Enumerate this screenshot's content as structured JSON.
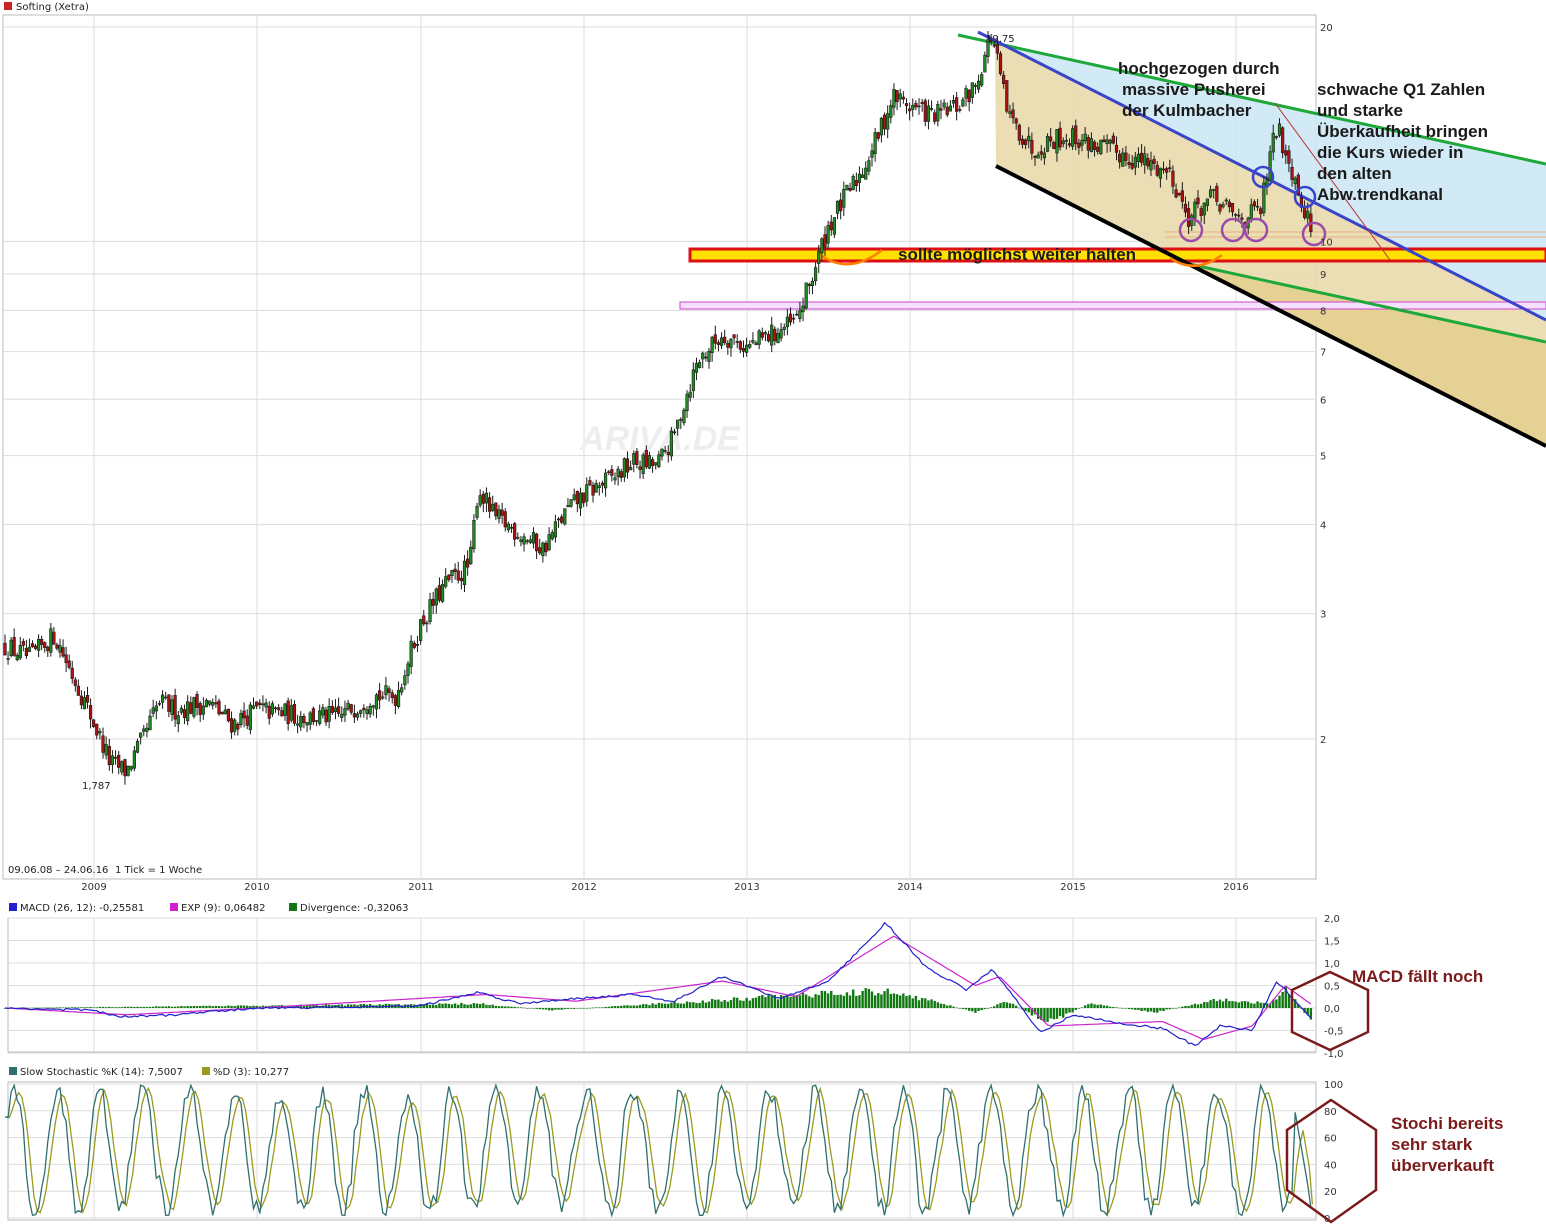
{
  "header": {
    "title": "Softing (Xetra)",
    "range": "09.06.08 – 24.06.16",
    "tick": "1 Tick = 1 Woche",
    "watermark": "ARIVA.DE",
    "high_label": "19,75",
    "low_label": "1,787"
  },
  "colors": {
    "candle": "#1a1a1a",
    "up": "#1f8c1f",
    "down": "#b01010",
    "grid": "#dddddd",
    "macd": "#2222cc",
    "signal": "#cc22cc",
    "divergence": "#117711",
    "stoch_k": "#2f6f6f",
    "stoch_d": "#9a9a20",
    "channel_fill": "#e8d8a8",
    "blue_fill": "#cce8f4",
    "annotation": "#7a1a1a",
    "circle": "#9a4aa8",
    "support": "#ffe000"
  },
  "legend": {
    "macd": "MACD (26, 12): -0,25581",
    "exp": "EXP (9): 0,06482",
    "divergence": "Divergence: -0,32063",
    "stoch_k": "Slow Stochastic %K (14): 7,5007",
    "stoch_d": "%D (3): 10,277"
  },
  "annotations": {
    "pusherei": [
      "hochgezogen durch",
      "massive  Pusherei",
      "der Kulmbacher"
    ],
    "q1": [
      "schwache Q1 Zahlen",
      "und starke",
      "Überkaufheit bringen",
      "die Kurs wieder in",
      "den alten",
      "Abw.trendkanal"
    ],
    "halten": "sollte möglichst weiter halten",
    "macd_note": "MACD fällt noch",
    "stochi": [
      "Stochi bereits",
      "sehr stark",
      "überverkauft"
    ]
  },
  "chart_data": [
    {
      "type": "candlestick",
      "title": "Softing (Xetra)",
      "x_ticks": [
        "2009",
        "2010",
        "2011",
        "2012",
        "2013",
        "2014",
        "2015",
        "2016"
      ],
      "y_ticks": [
        "20",
        "10",
        "9",
        "8",
        "7",
        "6",
        "5",
        "4",
        "3",
        "2"
      ],
      "y_scale": "log",
      "ylim": [
        1.4,
        20.5
      ],
      "weekly_close_anchors": [
        [
          2008.44,
          2.7
        ],
        [
          2008.6,
          2.6
        ],
        [
          2008.75,
          2.8
        ],
        [
          2008.85,
          2.5
        ],
        [
          2009.0,
          2.1
        ],
        [
          2009.1,
          1.85
        ],
        [
          2009.2,
          1.8
        ],
        [
          2009.3,
          2.0
        ],
        [
          2009.4,
          2.25
        ],
        [
          2009.5,
          2.2
        ],
        [
          2009.7,
          2.25
        ],
        [
          2009.85,
          2.1
        ],
        [
          2010.0,
          2.2
        ],
        [
          2010.3,
          2.15
        ],
        [
          2010.5,
          2.15
        ],
        [
          2010.7,
          2.3
        ],
        [
          2010.85,
          2.3
        ],
        [
          2011.0,
          2.9
        ],
        [
          2011.15,
          3.3
        ],
        [
          2011.3,
          3.5
        ],
        [
          2011.35,
          4.5
        ],
        [
          2011.45,
          4.1
        ],
        [
          2011.6,
          3.9
        ],
        [
          2011.75,
          3.7
        ],
        [
          2011.9,
          4.2
        ],
        [
          2012.0,
          4.4
        ],
        [
          2012.2,
          4.7
        ],
        [
          2012.3,
          4.9
        ],
        [
          2012.45,
          4.85
        ],
        [
          2012.55,
          5.3
        ],
        [
          2012.7,
          6.8
        ],
        [
          2012.85,
          7.4
        ],
        [
          2013.0,
          7.1
        ],
        [
          2013.15,
          7.4
        ],
        [
          2013.3,
          7.7
        ],
        [
          2013.4,
          8.9
        ],
        [
          2013.5,
          10.5
        ],
        [
          2013.6,
          11.5
        ],
        [
          2013.7,
          12.5
        ],
        [
          2013.8,
          14.0
        ],
        [
          2013.9,
          16.0
        ],
        [
          2014.0,
          15.5
        ],
        [
          2014.15,
          15.0
        ],
        [
          2014.3,
          15.5
        ],
        [
          2014.4,
          16.5
        ],
        [
          2014.5,
          19.5
        ],
        [
          2014.6,
          15.0
        ],
        [
          2014.75,
          13.5
        ],
        [
          2014.9,
          14.0
        ],
        [
          2015.0,
          14.0
        ],
        [
          2015.2,
          13.5
        ],
        [
          2015.4,
          13.0
        ],
        [
          2015.6,
          12.5
        ],
        [
          2015.7,
          10.8
        ],
        [
          2015.85,
          11.5
        ],
        [
          2016.0,
          10.8
        ],
        [
          2016.15,
          11.0
        ],
        [
          2016.25,
          14.5
        ],
        [
          2016.35,
          12.5
        ],
        [
          2016.47,
          10.2
        ]
      ]
    },
    {
      "type": "line",
      "title": "MACD",
      "y_ticks": [
        "2,0",
        "1,5",
        "1,0",
        "0,5",
        "0,0",
        "-0,5",
        "-1,0"
      ],
      "ylim": [
        -1.0,
        2.0
      ],
      "series": [
        {
          "name": "MACD (26, 12)",
          "anchors": [
            [
              2008.44,
              0
            ],
            [
              2009.0,
              -0.05
            ],
            [
              2009.15,
              -0.2
            ],
            [
              2009.5,
              -0.15
            ],
            [
              2010.0,
              0
            ],
            [
              2010.5,
              0.02
            ],
            [
              2011.0,
              0.05
            ],
            [
              2011.35,
              0.35
            ],
            [
              2011.6,
              0.1
            ],
            [
              2011.9,
              0.2
            ],
            [
              2012.3,
              0.3
            ],
            [
              2012.55,
              0.15
            ],
            [
              2012.85,
              0.7
            ],
            [
              2013.2,
              0.2
            ],
            [
              2013.5,
              0.6
            ],
            [
              2013.75,
              1.5
            ],
            [
              2013.85,
              1.9
            ],
            [
              2014.1,
              0.9
            ],
            [
              2014.35,
              0.4
            ],
            [
              2014.5,
              0.85
            ],
            [
              2014.65,
              0.2
            ],
            [
              2014.8,
              -0.55
            ],
            [
              2015.0,
              -0.15
            ],
            [
              2015.3,
              -0.35
            ],
            [
              2015.55,
              -0.45
            ],
            [
              2015.75,
              -0.85
            ],
            [
              2015.9,
              -0.4
            ],
            [
              2016.1,
              -0.5
            ],
            [
              2016.25,
              0.6
            ],
            [
              2016.47,
              -0.26
            ]
          ]
        },
        {
          "name": "EXP (9)",
          "anchors": [
            [
              2008.44,
              0
            ],
            [
              2009.2,
              -0.15
            ],
            [
              2010.0,
              0
            ],
            [
              2011.4,
              0.3
            ],
            [
              2011.95,
              0.15
            ],
            [
              2012.85,
              0.6
            ],
            [
              2013.3,
              0.25
            ],
            [
              2013.9,
              1.6
            ],
            [
              2014.4,
              0.5
            ],
            [
              2014.55,
              0.7
            ],
            [
              2014.85,
              -0.4
            ],
            [
              2015.55,
              -0.3
            ],
            [
              2015.8,
              -0.7
            ],
            [
              2016.1,
              -0.4
            ],
            [
              2016.3,
              0.5
            ],
            [
              2016.47,
              0.06
            ]
          ]
        },
        {
          "name": "Divergence",
          "anchors": [
            [
              2008.44,
              0
            ],
            [
              2011.35,
              0.1
            ],
            [
              2011.8,
              -0.05
            ],
            [
              2013.8,
              0.4
            ],
            [
              2014.0,
              0.3
            ],
            [
              2014.4,
              -0.1
            ],
            [
              2014.6,
              0.15
            ],
            [
              2014.85,
              -0.35
            ],
            [
              2015.1,
              0.1
            ],
            [
              2015.5,
              -0.1
            ],
            [
              2015.9,
              0.2
            ],
            [
              2016.2,
              0.1
            ],
            [
              2016.3,
              0.45
            ],
            [
              2016.47,
              -0.32
            ]
          ]
        }
      ]
    },
    {
      "type": "line",
      "title": "Slow Stochastic",
      "y_ticks": [
        "100",
        "80",
        "60",
        "40",
        "20",
        "0"
      ],
      "ylim": [
        0,
        100
      ],
      "series": [
        {
          "name": "Slow Stochastic %K (14)",
          "last": 7.5007
        },
        {
          "name": "%D (3)",
          "last": 10.277
        }
      ]
    }
  ]
}
